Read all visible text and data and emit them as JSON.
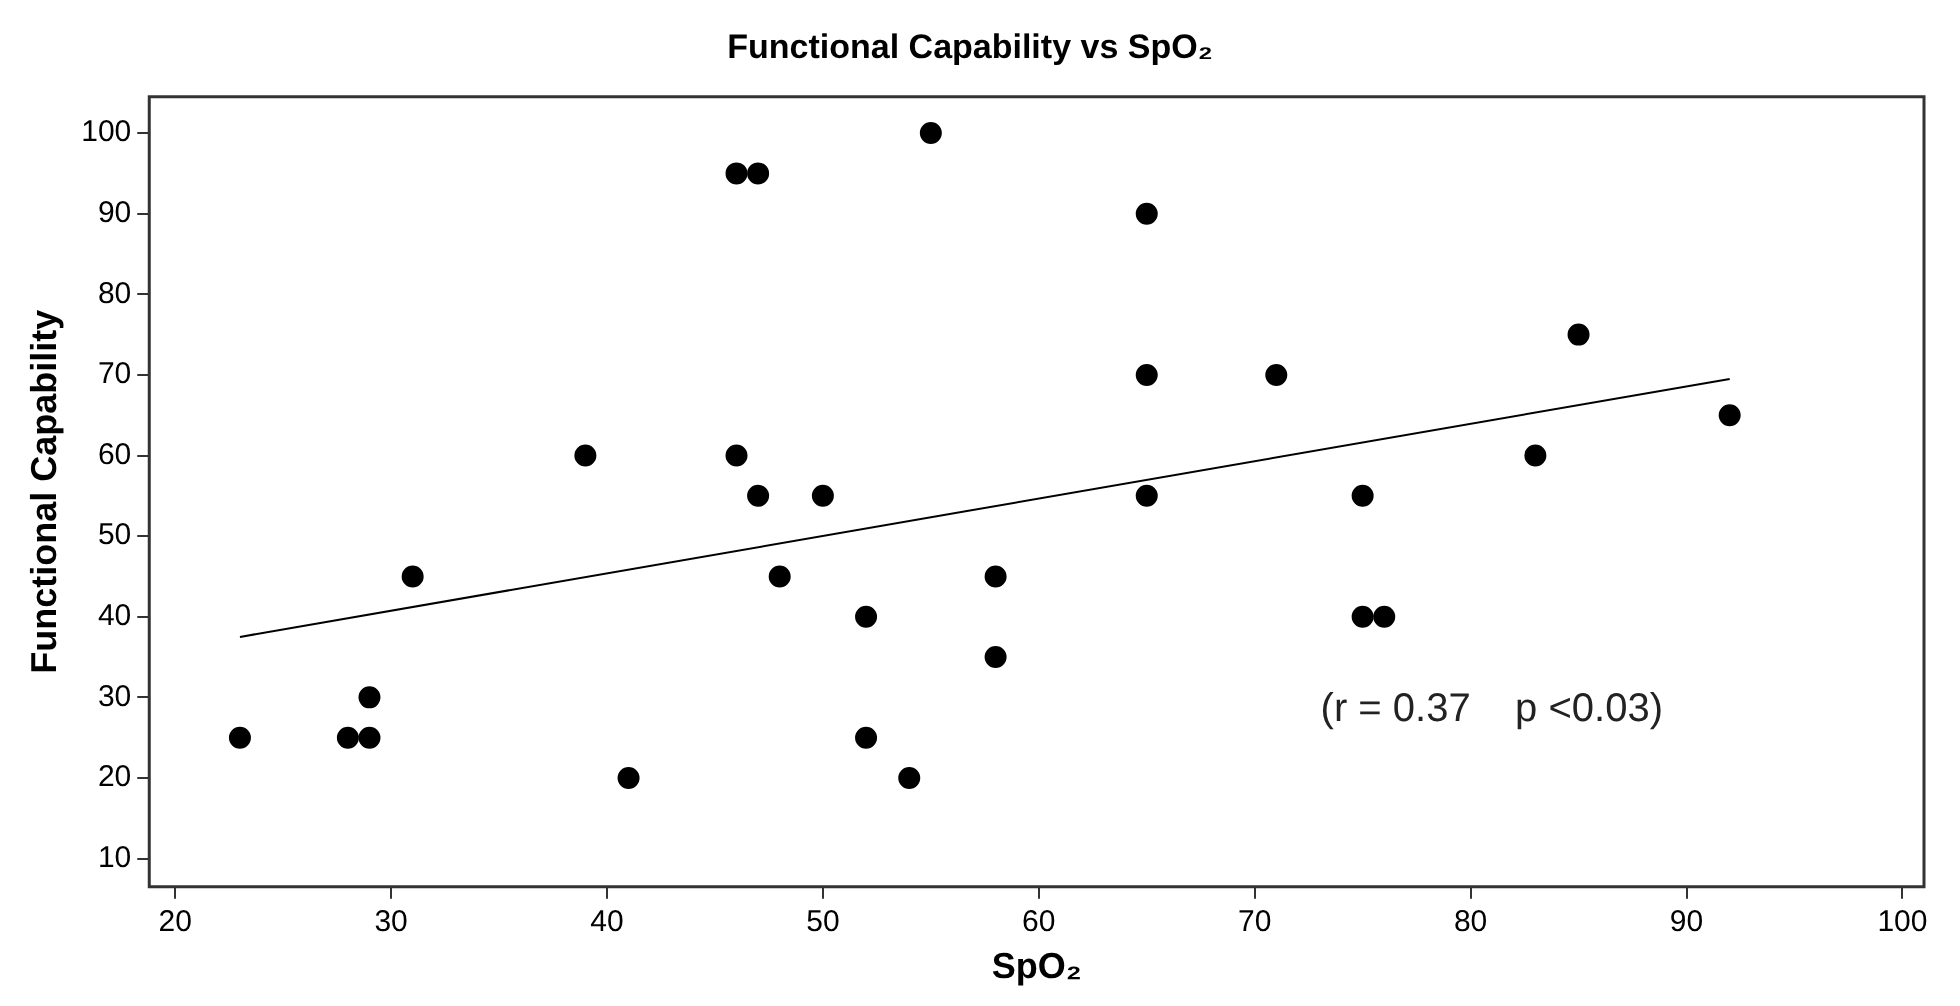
{
  "chart_data": {
    "type": "scatter",
    "title": "Functional Capability vs SpO₂",
    "xlabel": "SpO₂",
    "ylabel": "Functional Capability",
    "x": [
      23,
      28,
      29,
      29,
      31,
      39,
      41,
      46,
      47,
      46,
      47,
      48,
      50,
      52,
      52,
      54,
      55,
      58,
      58,
      65,
      65,
      65,
      71,
      75,
      75,
      76,
      83,
      85,
      92
    ],
    "series": [
      {
        "color": "#000000",
        "values": [
          25,
          25,
          25,
          30,
          45,
          60,
          20,
          95,
          95,
          60,
          55,
          45,
          55,
          40,
          25,
          20,
          100,
          45,
          35,
          90,
          70,
          55,
          70,
          55,
          40,
          40,
          60,
          75,
          65
        ]
      },
      {
        "type": "line",
        "marker": "none",
        "color": "#000000",
        "x": [
          23,
          92
        ],
        "values": [
          37.5,
          69.5
        ]
      }
    ],
    "xlim": [
      18.8,
      101
    ],
    "ylim": [
      6.5,
      104.5
    ],
    "xticks": [
      20,
      30,
      40,
      50,
      60,
      70,
      80,
      90,
      100
    ],
    "yticks": [
      10,
      20,
      30,
      40,
      50,
      60,
      70,
      80,
      90,
      100
    ],
    "grid": false,
    "legend": false,
    "marker": "circle",
    "line_style": "solid",
    "annotations": [
      "(r = 0.37    p <0.03)"
    ]
  }
}
